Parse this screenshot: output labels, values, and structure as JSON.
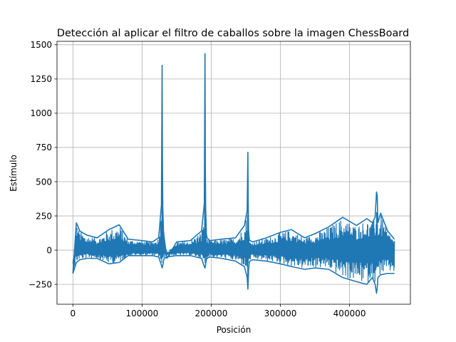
{
  "chart_data": {
    "type": "line",
    "title": "Detección al aplicar el filtro de caballos sobre la imagen ChessBoard",
    "xlabel": "Posición",
    "ylabel": "Estímulo",
    "xlim": [
      -23000,
      488000
    ],
    "ylim": [
      -395,
      1525
    ],
    "xticks": [
      0,
      100000,
      200000,
      300000,
      400000
    ],
    "xtick_labels": [
      "0",
      "100000",
      "200000",
      "300000",
      "400000"
    ],
    "yticks": [
      -250,
      0,
      250,
      500,
      750,
      1000,
      1250,
      1500
    ],
    "ytick_labels": [
      "−250",
      "0",
      "250",
      "500",
      "750",
      "1000",
      "1250",
      "1500"
    ],
    "grid": true,
    "line_color": "#1f77b4",
    "series": [
      {
        "x": [
          0,
          5000,
          10000,
          20000,
          35000,
          52000,
          67000,
          80000,
          100000,
          115000,
          124000,
          128000,
          129000,
          129500,
          130000,
          131000,
          132000,
          136000,
          150000,
          170000,
          186000,
          190000,
          191000,
          191500,
          192000,
          193000,
          194000,
          198000,
          215000,
          235000,
          248000,
          252000,
          253000,
          253500,
          254000,
          255000,
          256000,
          260000,
          280000,
          300000,
          316000,
          335000,
          350000,
          370000,
          390000,
          410000,
          425000,
          433000,
          437000,
          439000,
          440000,
          441000,
          445000,
          455000,
          465000
        ],
        "y": [
          -170,
          200,
          140,
          110,
          90,
          150,
          185,
          80,
          70,
          60,
          90,
          330,
          1350,
          620,
          300,
          140,
          90,
          -60,
          60,
          70,
          140,
          340,
          1435,
          600,
          300,
          120,
          90,
          70,
          80,
          90,
          180,
          290,
          715,
          330,
          150,
          80,
          70,
          60,
          90,
          130,
          150,
          90,
          120,
          170,
          240,
          180,
          230,
          200,
          240,
          425,
          400,
          200,
          270,
          140,
          80
        ],
        "envelope_low": [
          -170,
          -90,
          -70,
          -60,
          -60,
          -100,
          -90,
          -40,
          -40,
          -40,
          -50,
          -110,
          -130,
          -120,
          -110,
          -80,
          -60,
          -50,
          -40,
          -40,
          -60,
          -120,
          -130,
          -120,
          -100,
          -70,
          -60,
          -50,
          -60,
          -80,
          -120,
          -200,
          -285,
          -230,
          -150,
          -90,
          -80,
          -70,
          -80,
          -100,
          -120,
          -140,
          -130,
          -140,
          -200,
          -230,
          -250,
          -200,
          -250,
          -315,
          -280,
          -200,
          -180,
          -170,
          -170
        ]
      }
    ]
  }
}
